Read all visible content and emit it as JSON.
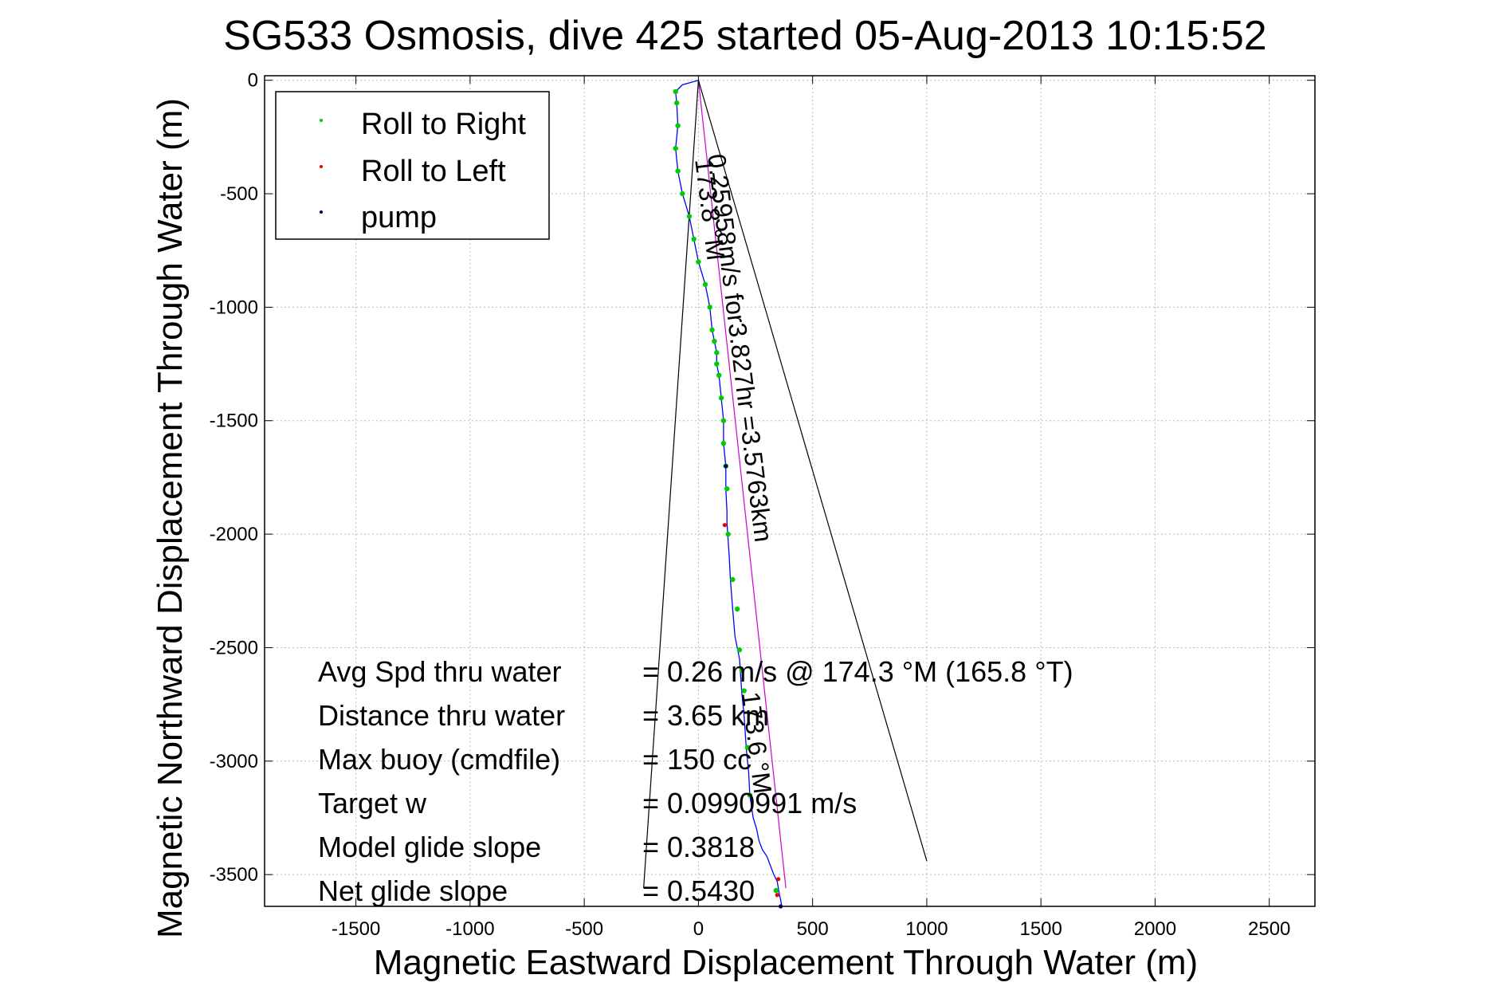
{
  "chart_data": {
    "type": "scatter",
    "title": "SG533 Osmosis, dive 425 started 05-Aug-2013 10:15:52",
    "xlabel": "Magnetic Eastward Displacement Through Water (m)",
    "ylabel": "Magnetic Northward Displacement Through Water (m)",
    "xlim": [
      -1900,
      2700
    ],
    "ylim": [
      -3640,
      20
    ],
    "xticks": [
      -1500,
      -1000,
      -500,
      0,
      500,
      1000,
      1500,
      2000,
      2500
    ],
    "xtick_labels": [
      "-1500",
      "-1000",
      "-500",
      "0",
      "500",
      "1000",
      "1500",
      "2000",
      "2500"
    ],
    "yticks": [
      0,
      -500,
      -1000,
      -1500,
      -2000,
      -2500,
      -3000,
      -3500
    ],
    "ytick_labels": [
      "0",
      "-500",
      "-1000",
      "-1500",
      "-2000",
      "-2500",
      "-3000",
      "-3500"
    ],
    "grid": true,
    "legend": {
      "placement": "top-left",
      "entries": [
        {
          "label": "Roll to Right",
          "color": "#00cc00"
        },
        {
          "label": "Roll to Left",
          "color": "#ee0000"
        },
        {
          "label": "pump",
          "color": "#000055"
        }
      ]
    },
    "track": {
      "x": [
        0,
        -70,
        -100,
        -95,
        -90,
        -100,
        -90,
        -70,
        -40,
        -20,
        0,
        30,
        50,
        60,
        70,
        80,
        80,
        90,
        100,
        110,
        110,
        120,
        120,
        125,
        125,
        135,
        140,
        150,
        160,
        180,
        190,
        200,
        210,
        220,
        225,
        240,
        255,
        265,
        280,
        300,
        315,
        330,
        345,
        350,
        355,
        360,
        365
      ],
      "y": [
        0,
        -20,
        -50,
        -100,
        -200,
        -300,
        -400,
        -500,
        -600,
        -700,
        -800,
        -900,
        -1000,
        -1100,
        -1150,
        -1200,
        -1250,
        -1300,
        -1400,
        -1500,
        -1600,
        -1700,
        -1800,
        -1900,
        -1950,
        -2100,
        -2200,
        -2330,
        -2450,
        -2550,
        -2700,
        -2800,
        -2950,
        -3050,
        -3150,
        -3250,
        -3300,
        -3350,
        -3390,
        -3420,
        -3460,
        -3500,
        -3530,
        -3560,
        -3590,
        -3610,
        -3640
      ]
    },
    "roll_right_points": {
      "x": [
        -100,
        -95,
        -90,
        -100,
        -90,
        -70,
        -40,
        -20,
        0,
        30,
        50,
        60,
        70,
        80,
        80,
        90,
        100,
        110,
        110,
        120,
        125,
        130,
        150,
        170,
        180,
        190,
        200,
        215,
        225,
        340
      ],
      "y": [
        -50,
        -100,
        -200,
        -300,
        -400,
        -500,
        -600,
        -700,
        -800,
        -900,
        -1000,
        -1100,
        -1150,
        -1200,
        -1250,
        -1300,
        -1400,
        -1500,
        -1600,
        -1700,
        -1800,
        -2000,
        -2200,
        -2330,
        -2510,
        -2600,
        -2690,
        -2940,
        -3150,
        -3570
      ]
    },
    "roll_left_points": {
      "x": [
        115,
        350,
        345
      ],
      "y": [
        -1960,
        -3520,
        -3590
      ]
    },
    "pump_points": {
      "x": [
        120,
        360
      ],
      "y": [
        -1700,
        -3640
      ]
    },
    "heading_lines": [
      {
        "x": [
          0,
          383
        ],
        "y": [
          0,
          -3560
        ],
        "color": "#cc00cc"
      },
      {
        "x": [
          0,
          -240
        ],
        "y": [
          0,
          -3560
        ],
        "color": "#000000"
      },
      {
        "x": [
          0,
          1000
        ],
        "y": [
          0,
          -3440
        ],
        "color": "#000000"
      }
    ],
    "annotations": [
      {
        "text": "0.25958m/s for3.827hr =3.5763km",
        "x": 40,
        "y": -330,
        "rotation_deg": 83
      },
      {
        "text": "173.8 °M",
        "x": -15,
        "y": -350,
        "rotation_deg": 83
      },
      {
        "text": "173.6 °M",
        "x": 190,
        "y": -2700,
        "rotation_deg": 83
      }
    ],
    "stats": [
      {
        "label": "Avg Spd thru water",
        "value": "=  0.26 m/s @ 174.3 °M (165.8 °T)"
      },
      {
        "label": "Distance thru water",
        "value": "=  3.65 km"
      },
      {
        "label": "Max buoy (cmdfile)",
        "value": "= 150 cc"
      },
      {
        "label": "Target w",
        "value": "= 0.0990991 m/s"
      },
      {
        "label": "Model glide slope",
        "value": "= 0.3818"
      },
      {
        "label": "Net glide slope",
        "value": "= 0.5430"
      }
    ],
    "colors": {
      "track": "#0000ff",
      "roll_right": "#00cc00",
      "roll_left": "#ee0000",
      "pump": "#000055",
      "magenta_line": "#cc00cc",
      "axes": "#000000",
      "grid": "#bbbbbb"
    }
  }
}
